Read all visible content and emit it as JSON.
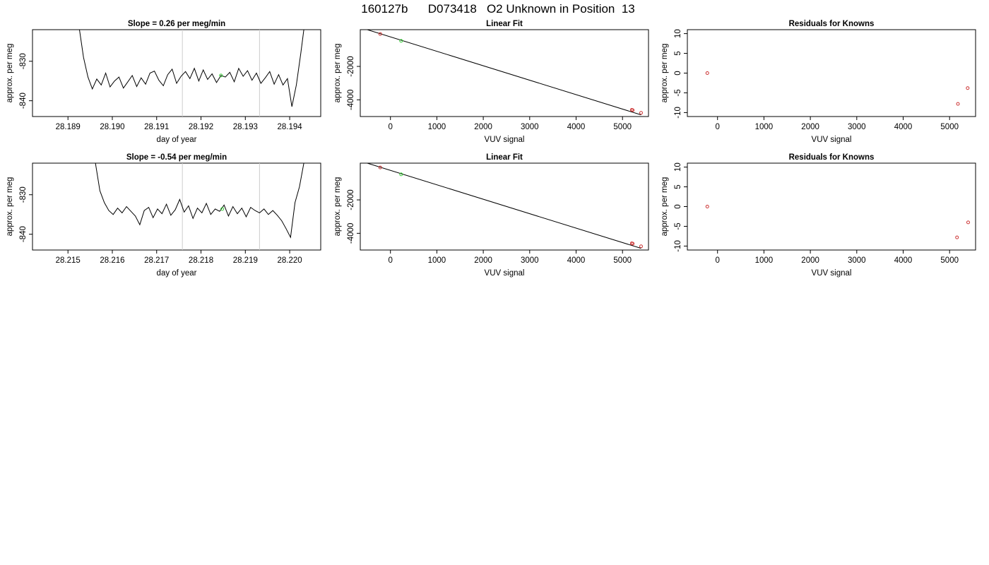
{
  "page_title": "160127b      D073418   O2 Unknown in Position  13",
  "chart_data": [
    {
      "id": "row1-timeseries",
      "type": "line",
      "title": "Slope =  0.26  per meg/min",
      "xlabel": "day of year",
      "ylabel": "approx. per meg",
      "xlim": [
        28.1882,
        28.1947
      ],
      "ylim": [
        -844,
        -822
      ],
      "xticks": [
        "28.189",
        "28.190",
        "28.191",
        "28.192",
        "28.193",
        "28.194"
      ],
      "xtick_values": [
        28.189,
        28.19,
        28.191,
        28.192,
        28.193,
        28.194
      ],
      "yticks": [
        "-830",
        "-840"
      ],
      "ytick_values": [
        -830,
        -840
      ],
      "vlines": [
        28.19158,
        28.19332
      ],
      "vline_color": "#cccccc",
      "x": [
        28.18926,
        28.18935,
        28.18945,
        28.18955,
        28.18965,
        28.18975,
        28.18985,
        28.18995,
        28.19005,
        28.19015,
        28.19025,
        28.19035,
        28.19045,
        28.19055,
        28.19065,
        28.19075,
        28.19085,
        28.19095,
        28.19105,
        28.19115,
        28.19125,
        28.19135,
        28.19145,
        28.19155,
        28.19165,
        28.19175,
        28.19185,
        28.19195,
        28.19205,
        28.19215,
        28.19225,
        28.19235,
        28.19245,
        28.19255,
        28.19265,
        28.19275,
        28.19285,
        28.19295,
        28.19305,
        28.19315,
        28.19325,
        28.19335,
        28.19345,
        28.19355,
        28.19365,
        28.19375,
        28.19385,
        28.19395,
        28.19405,
        28.19415,
        28.19425,
        28.19432
      ],
      "y": [
        -822,
        -829,
        -834,
        -837,
        -834.5,
        -836,
        -833,
        -836.5,
        -835,
        -834,
        -836.8,
        -835.2,
        -833.6,
        -836.4,
        -834.2,
        -835.8,
        -833,
        -832.5,
        -834.8,
        -836.2,
        -833.4,
        -832,
        -835.6,
        -833.8,
        -832.6,
        -834.4,
        -831.8,
        -835,
        -832.2,
        -834.6,
        -833.2,
        -835.4,
        -833.6,
        -834,
        -832.8,
        -835.2,
        -831.8,
        -833.8,
        -832.4,
        -834.8,
        -833,
        -835.6,
        -834.2,
        -832.6,
        -835.8,
        -833.4,
        -836,
        -834.4,
        -841.5,
        -836,
        -828,
        -822
      ],
      "highlight_point": {
        "x": 28.19245,
        "y": -833.6,
        "color": "#33cc33"
      }
    },
    {
      "id": "row1-linearfit",
      "type": "scatter",
      "title": "Linear Fit",
      "xlabel": "VUV signal",
      "ylabel": "approx. per meg",
      "xlim": [
        -650,
        5560
      ],
      "ylim": [
        -5000,
        200
      ],
      "xticks": [
        "0",
        "1000",
        "2000",
        "3000",
        "4000",
        "5000"
      ],
      "xtick_values": [
        0,
        1000,
        2000,
        3000,
        4000,
        5000
      ],
      "yticks": [
        "-2000",
        "-4000"
      ],
      "ytick_values": [
        -2000,
        -4000
      ],
      "fit_line": {
        "x": [
          -500,
          5400
        ],
        "y": [
          200,
          -4900
        ]
      },
      "points": [
        {
          "x": -220,
          "y": -60,
          "color": "#cc3333"
        },
        {
          "x": 230,
          "y": -470,
          "color": "#33cc33"
        },
        {
          "x": 5200,
          "y": -4600,
          "color": "#cc3333"
        },
        {
          "x": 5220,
          "y": -4620,
          "color": "#cc3333"
        },
        {
          "x": 5400,
          "y": -4780,
          "color": "#cc3333"
        }
      ]
    },
    {
      "id": "row1-residuals",
      "type": "scatter",
      "title": "Residuals for Knowns",
      "xlabel": "VUV signal",
      "ylabel": "approx. per meg",
      "xlim": [
        -650,
        5560
      ],
      "ylim": [
        -11,
        11
      ],
      "xticks": [
        "0",
        "1000",
        "2000",
        "3000",
        "4000",
        "5000"
      ],
      "xtick_values": [
        0,
        1000,
        2000,
        3000,
        4000,
        5000
      ],
      "yticks": [
        "10",
        "5",
        "0",
        "-5",
        "-10"
      ],
      "ytick_values": [
        10,
        5,
        0,
        -5,
        -10
      ],
      "points": [
        {
          "x": -220,
          "y": 0,
          "color": "#cc3333"
        },
        {
          "x": 5180,
          "y": -7.8,
          "color": "#cc3333"
        },
        {
          "x": 5390,
          "y": -3.8,
          "color": "#cc3333"
        }
      ]
    },
    {
      "id": "row2-timeseries",
      "type": "line",
      "title": "Slope =  -0.54  per meg/min",
      "xlabel": "day of year",
      "ylabel": "approx. per meg",
      "xlim": [
        28.2142,
        28.2207
      ],
      "ylim": [
        -844,
        -822
      ],
      "xticks": [
        "28.215",
        "28.216",
        "28.217",
        "28.218",
        "28.219",
        "28.220"
      ],
      "xtick_values": [
        28.215,
        28.216,
        28.217,
        28.218,
        28.219,
        28.22
      ],
      "yticks": [
        "-830",
        "-840"
      ],
      "ytick_values": [
        -830,
        -840
      ],
      "vlines": [
        28.21758,
        28.21932
      ],
      "vline_color": "#cccccc",
      "x": [
        28.21562,
        28.21572,
        28.21582,
        28.21592,
        28.21602,
        28.21612,
        28.21622,
        28.21632,
        28.21642,
        28.21652,
        28.21662,
        28.21672,
        28.21682,
        28.21692,
        28.21702,
        28.21712,
        28.21722,
        28.21732,
        28.21742,
        28.21752,
        28.21762,
        28.21772,
        28.21782,
        28.21792,
        28.21802,
        28.21812,
        28.21822,
        28.21832,
        28.21842,
        28.21852,
        28.21862,
        28.21872,
        28.21882,
        28.21892,
        28.21902,
        28.21912,
        28.21922,
        28.21932,
        28.21942,
        28.21952,
        28.21962,
        28.21972,
        28.21982,
        28.21992,
        28.22002,
        28.22012,
        28.22022,
        28.22032
      ],
      "y": [
        -822,
        -829,
        -832,
        -834,
        -835,
        -833.4,
        -834.6,
        -833,
        -834.2,
        -835.4,
        -837.6,
        -834,
        -833.2,
        -835.8,
        -833.6,
        -834.8,
        -832.4,
        -835.2,
        -833.8,
        -831.2,
        -834.4,
        -832.8,
        -836,
        -833.4,
        -834.6,
        -832.2,
        -835,
        -833.6,
        -834.2,
        -832.6,
        -835.4,
        -833,
        -834.8,
        -833.4,
        -835.6,
        -833.2,
        -834,
        -834.6,
        -833.6,
        -835,
        -834,
        -835.2,
        -836.6,
        -838.6,
        -840.8,
        -832,
        -828,
        -822
      ],
      "highlight_point": {
        "x": 28.21848,
        "y": -833.6,
        "color": "#33cc33"
      }
    },
    {
      "id": "row2-linearfit",
      "type": "scatter",
      "title": "Linear Fit",
      "xlabel": "VUV signal",
      "ylabel": "approx. per meg",
      "xlim": [
        -650,
        5560
      ],
      "ylim": [
        -5000,
        200
      ],
      "xticks": [
        "0",
        "1000",
        "2000",
        "3000",
        "4000",
        "5000"
      ],
      "xtick_values": [
        0,
        1000,
        2000,
        3000,
        4000,
        5000
      ],
      "yticks": [
        "-2000",
        "-4000"
      ],
      "ytick_values": [
        -2000,
        -4000
      ],
      "fit_line": {
        "x": [
          -500,
          5400
        ],
        "y": [
          200,
          -4900
        ]
      },
      "points": [
        {
          "x": -220,
          "y": -60,
          "color": "#cc3333"
        },
        {
          "x": 230,
          "y": -470,
          "color": "#33cc33"
        },
        {
          "x": 5200,
          "y": -4600,
          "color": "#cc3333"
        },
        {
          "x": 5220,
          "y": -4620,
          "color": "#cc3333"
        },
        {
          "x": 5400,
          "y": -4780,
          "color": "#cc3333"
        }
      ]
    },
    {
      "id": "row2-residuals",
      "type": "scatter",
      "title": "Residuals for Knowns",
      "xlabel": "VUV signal",
      "ylabel": "approx. per meg",
      "xlim": [
        -650,
        5560
      ],
      "ylim": [
        -11,
        11
      ],
      "xticks": [
        "0",
        "1000",
        "2000",
        "3000",
        "4000",
        "5000"
      ],
      "xtick_values": [
        0,
        1000,
        2000,
        3000,
        4000,
        5000
      ],
      "yticks": [
        "10",
        "5",
        "0",
        "-5",
        "-10"
      ],
      "ytick_values": [
        10,
        5,
        0,
        -5,
        -10
      ],
      "points": [
        {
          "x": -220,
          "y": 0,
          "color": "#cc3333"
        },
        {
          "x": 5160,
          "y": -7.8,
          "color": "#cc3333"
        },
        {
          "x": 5400,
          "y": -4.0,
          "color": "#cc3333"
        }
      ]
    }
  ]
}
